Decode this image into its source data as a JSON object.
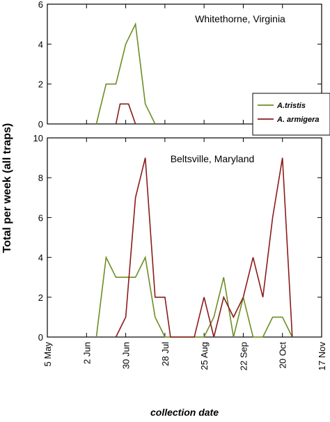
{
  "chart_data": {
    "type": "line",
    "ylabel": "Total per week (all traps)",
    "xlabel": "collection date",
    "x_axis": {
      "ticks": [
        {
          "label": "5 May",
          "day": 0
        },
        {
          "label": "2 Jun",
          "day": 28
        },
        {
          "label": "30 Jun",
          "day": 56
        },
        {
          "label": "28 Jul",
          "day": 84
        },
        {
          "label": "25 Aug",
          "day": 112
        },
        {
          "label": "22 Sep",
          "day": 140
        },
        {
          "label": "20 Oct",
          "day": 168
        },
        {
          "label": "17 Nov",
          "day": 196
        }
      ],
      "range_days": [
        0,
        196
      ]
    },
    "legend": [
      {
        "name": "A.tristis",
        "color": "#6b8e23"
      },
      {
        "name": "A. armigera",
        "color": "#8b1a1a"
      }
    ],
    "legend_position": "right, between panels",
    "panels": [
      {
        "title": "Whitethorne, Virginia",
        "ylim": [
          0,
          6
        ],
        "yticks": [
          0,
          2,
          4,
          6
        ],
        "series": [
          {
            "name": "A.tristis",
            "color": "#6b8e23",
            "points": [
              [
                35,
                0
              ],
              [
                42,
                2
              ],
              [
                49,
                2
              ],
              [
                56,
                4
              ],
              [
                63,
                5
              ],
              [
                70,
                1
              ],
              [
                77,
                0
              ]
            ]
          },
          {
            "name": "A. armigera",
            "color": "#8b1a1a",
            "points": [
              [
                49,
                0
              ],
              [
                52,
                1
              ],
              [
                58,
                1
              ],
              [
                63,
                0
              ]
            ]
          }
        ]
      },
      {
        "title": "Beltsville, Maryland",
        "ylim": [
          0,
          10
        ],
        "yticks": [
          0,
          2,
          4,
          6,
          8,
          10
        ],
        "series": [
          {
            "name": "A.tristis",
            "color": "#6b8e23",
            "points": [
              [
                35,
                0
              ],
              [
                42,
                4
              ],
              [
                49,
                3
              ],
              [
                56,
                3
              ],
              [
                63,
                3
              ],
              [
                70,
                4
              ],
              [
                77,
                1
              ],
              [
                84,
                0
              ],
              [
                112,
                0
              ],
              [
                119,
                1
              ],
              [
                126,
                3
              ],
              [
                133,
                0
              ],
              [
                140,
                2
              ],
              [
                147,
                0
              ],
              [
                154,
                0
              ],
              [
                161,
                1
              ],
              [
                168,
                1
              ],
              [
                175,
                0
              ]
            ]
          },
          {
            "name": "A. armigera",
            "color": "#8b1a1a",
            "points": [
              [
                49,
                0
              ],
              [
                56,
                1
              ],
              [
                63,
                7
              ],
              [
                70,
                9
              ],
              [
                77,
                2
              ],
              [
                84,
                2
              ],
              [
                88,
                0
              ],
              [
                105,
                0
              ],
              [
                112,
                2
              ],
              [
                119,
                0
              ],
              [
                126,
                2
              ],
              [
                133,
                1
              ],
              [
                140,
                2
              ],
              [
                147,
                4
              ],
              [
                154,
                2
              ],
              [
                161,
                6
              ],
              [
                168,
                9
              ],
              [
                175,
                0
              ]
            ]
          }
        ]
      }
    ]
  }
}
